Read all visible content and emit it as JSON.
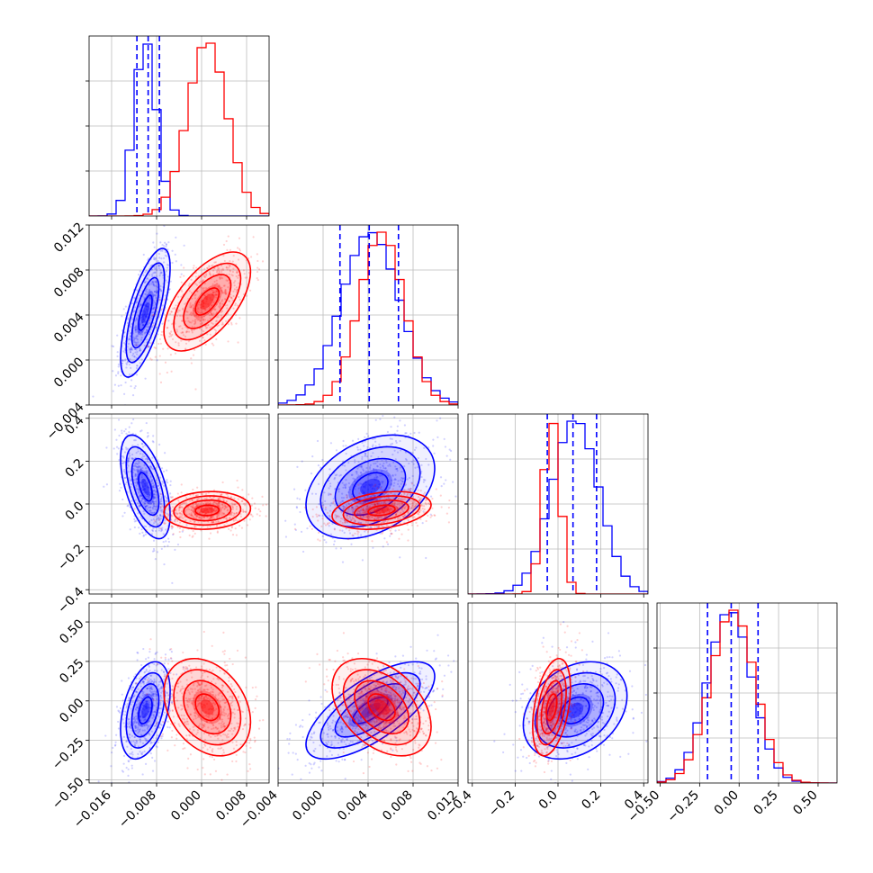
{
  "chart_data": {
    "type": "corner",
    "series": [
      {
        "name": "",
        "color": "#0000ff",
        "mean": [
          -0.01,
          0.0042,
          0.08,
          -0.06
        ],
        "sd": [
          0.002,
          0.0026,
          0.11,
          0.14
        ]
      },
      {
        "name": "",
        "color": "#ff0000",
        "mean": [
          0.001,
          0.0052,
          -0.03,
          -0.04
        ],
        "sd": [
          0.0035,
          0.002,
          0.04,
          0.14
        ]
      }
    ],
    "params": [
      {
        "range": [
          -0.02,
          0.012
        ],
        "ticks": [
          -0.016,
          -0.008,
          0.0,
          0.008
        ],
        "tick_labels": [
          "−0.016",
          "−0.008",
          "0.000",
          "0.008"
        ]
      },
      {
        "range": [
          -0.004,
          0.012
        ],
        "ticks": [
          -0.004,
          0.0,
          0.004,
          0.008,
          0.012
        ],
        "tick_labels": [
          "−0.004",
          "0.000",
          "0.004",
          "0.008",
          "0.012"
        ]
      },
      {
        "range": [
          -0.42,
          0.42
        ],
        "ticks": [
          -0.4,
          -0.2,
          0.0,
          0.2,
          0.4
        ],
        "tick_labels": [
          "−0.4",
          "−0.2",
          "0.0",
          "0.2",
          "0.4"
        ]
      },
      {
        "range": [
          -0.52,
          0.62
        ],
        "ticks": [
          -0.5,
          -0.25,
          0.0,
          0.25,
          0.5
        ],
        "tick_labels": [
          "−0.50",
          "−0.25",
          "0.00",
          "0.25",
          "0.50"
        ]
      }
    ],
    "quantiles_blue": [
      [
        -0.0115,
        -0.0095,
        -0.0075
      ],
      [
        0.0015,
        0.0041,
        0.0067
      ],
      [
        -0.05,
        0.07,
        0.18
      ],
      [
        -0.2,
        -0.05,
        0.12
      ]
    ],
    "correlations": {
      "blue": {
        "1,0": 0.7,
        "2,0": -0.55,
        "2,1": 0.35,
        "3,0": 0.4,
        "3,1": 0.7,
        "3,2": 0.3
      },
      "red": {
        "1,0": 0.6,
        "2,0": 0.1,
        "2,1": 0.3,
        "3,0": -0.3,
        "3,1": -0.4,
        "3,2": 0.4
      }
    },
    "grid": true,
    "legend": "none"
  }
}
